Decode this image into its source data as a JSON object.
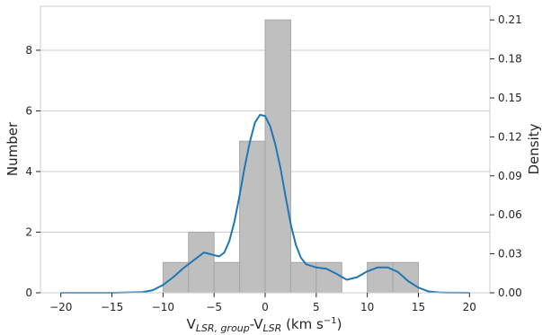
{
  "chart_data": {
    "type": "bar",
    "title": "",
    "xlabel": {
      "main": "V",
      "sub1": "LSR, group",
      "mid": "-V",
      "sub2": "LSR",
      "unit_pre": " (km s",
      "unit_sup": "−1",
      "unit_post": ")"
    },
    "ylabel": "Number",
    "y2label": "Density",
    "xlim": [
      -22,
      22
    ],
    "ylim": [
      0,
      9.45
    ],
    "y2lim": [
      0,
      0.2205
    ],
    "grid": "horizontal",
    "xticks": [
      -20,
      -15,
      -10,
      -5,
      0,
      5,
      10,
      15,
      20
    ],
    "xtick_labels": [
      "−20",
      "−15",
      "−10",
      "−5",
      "0",
      "5",
      "10",
      "15",
      "20"
    ],
    "yticks": [
      0,
      2,
      4,
      6,
      8
    ],
    "ytick_labels": [
      "0",
      "2",
      "4",
      "6",
      "8"
    ],
    "y2ticks": [
      0,
      0.03,
      0.06,
      0.09,
      0.12,
      0.15,
      0.18,
      0.21
    ],
    "y2tick_labels": [
      "0.00",
      "0.03",
      "0.06",
      "0.09",
      "0.12",
      "0.15",
      "0.18",
      "0.21"
    ],
    "histogram": {
      "bin_edges": [
        -10,
        -7.5,
        -5,
        -2.5,
        0,
        2.5,
        5,
        7.5,
        10,
        12.5,
        15
      ],
      "counts": [
        1,
        2,
        1,
        5,
        9,
        1,
        1,
        0,
        1,
        1
      ],
      "color": "#bfbfbf",
      "edge_color": "#a6a6a6"
    },
    "kde": {
      "color": "#1f77b4",
      "x": [
        -20,
        -15,
        -12,
        -11,
        -10,
        -9,
        -8,
        -7,
        -6,
        -5,
        -4.5,
        -4,
        -3.5,
        -3,
        -2.5,
        -2,
        -1.5,
        -1,
        -0.5,
        0,
        0.5,
        1,
        1.5,
        2,
        2.5,
        3,
        3.5,
        4,
        5,
        6,
        7,
        8,
        9,
        10,
        11,
        12,
        13,
        14,
        15,
        16,
        17,
        18,
        20
      ],
      "y": [
        0,
        0,
        0.0005,
        0.002,
        0.006,
        0.012,
        0.019,
        0.025,
        0.031,
        0.029,
        0.028,
        0.031,
        0.04,
        0.055,
        0.075,
        0.097,
        0.116,
        0.131,
        0.137,
        0.136,
        0.128,
        0.114,
        0.096,
        0.074,
        0.053,
        0.037,
        0.027,
        0.022,
        0.0195,
        0.0185,
        0.0145,
        0.01,
        0.012,
        0.0165,
        0.0195,
        0.0195,
        0.016,
        0.009,
        0.004,
        0.001,
        0.0003,
        0.0001,
        0
      ]
    }
  }
}
